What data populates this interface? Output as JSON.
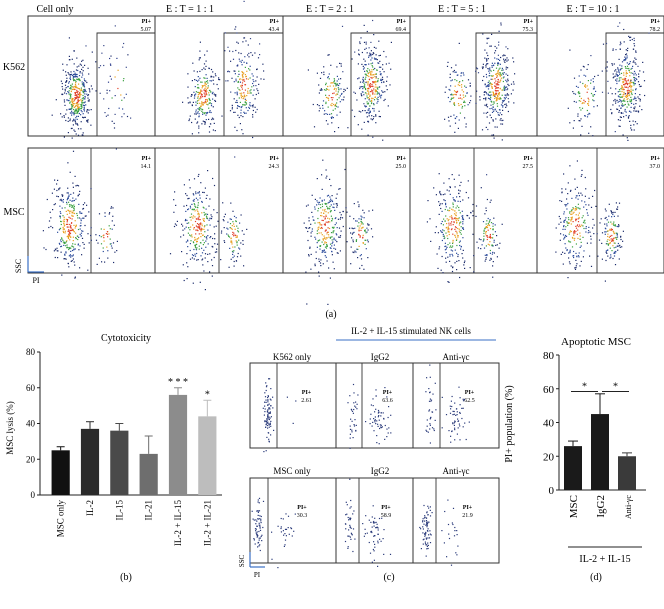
{
  "panel_a": {
    "column_headers": [
      "Cell only",
      "E : T = 1 : 1",
      "E : T = 2 : 1",
      "E : T = 5 : 1",
      "E : T = 10 : 1"
    ],
    "row_labels": [
      "K562",
      "MSC"
    ],
    "gate_label": "PI+",
    "k562_values": [
      "5.07",
      "43.4",
      "69.4",
      "75.3",
      "78.2"
    ],
    "msc_values": [
      "14.1",
      "24.3",
      "25.0",
      "27.5",
      "37.0"
    ],
    "y_axis": "SSC",
    "x_axis": "PI",
    "caption": "(a)"
  },
  "panel_b": {
    "caption": "(b)"
  },
  "panel_c": {
    "header": "IL-2 + IL-15 stimulated NK cells",
    "top_labels": [
      "K562 only",
      "IgG2",
      "Anti-γc"
    ],
    "bottom_labels": [
      "MSC only",
      "IgG2",
      "Anti-γc"
    ],
    "gate_label": "PI+",
    "top_values": [
      "2.61",
      "63.6",
      "62.5"
    ],
    "bottom_values": [
      "30.3",
      "58.9",
      "21.9"
    ],
    "y_axis": "SSC",
    "x_axis": "PI",
    "caption": "(c)"
  },
  "panel_d": {
    "caption": "(d)",
    "group_label": "IL-2 + IL-15"
  },
  "chart_data": [
    {
      "type": "bar",
      "title": "Cytotoxicity",
      "ylabel": "MSC lysis (%)",
      "categories": [
        "MSC only",
        "IL-2",
        "IL-15",
        "IL-21",
        "IL-2 + IL-15",
        "IL-2 + IL-21"
      ],
      "values": [
        25,
        37,
        36,
        23,
        56,
        44
      ],
      "errors": [
        2,
        4,
        4,
        10,
        4,
        9
      ],
      "colors": [
        "#111111",
        "#2a2a2a",
        "#4a4a4a",
        "#6e6e6e",
        "#8c8c8c",
        "#bdbdbd"
      ],
      "significance": [
        "",
        "",
        "",
        "",
        "* * *",
        "*"
      ],
      "ylim": [
        0,
        80
      ],
      "yticks": [
        "0",
        "20",
        "40",
        "60",
        "80"
      ]
    },
    {
      "type": "bar",
      "title": "Apoptotic MSC",
      "ylabel": "PI+ population (%)",
      "categories": [
        "MSC",
        "IgG2",
        "Anti-γc"
      ],
      "values": [
        26,
        45,
        20
      ],
      "errors": [
        3,
        12,
        2
      ],
      "colors": [
        "#1a1a1a",
        "#1a1a1a",
        "#3a3a3a"
      ],
      "significance_marks": [
        "*",
        "*"
      ],
      "ylim": [
        0,
        80
      ],
      "yticks": [
        "0",
        "20",
        "40",
        "60",
        "80"
      ]
    }
  ]
}
